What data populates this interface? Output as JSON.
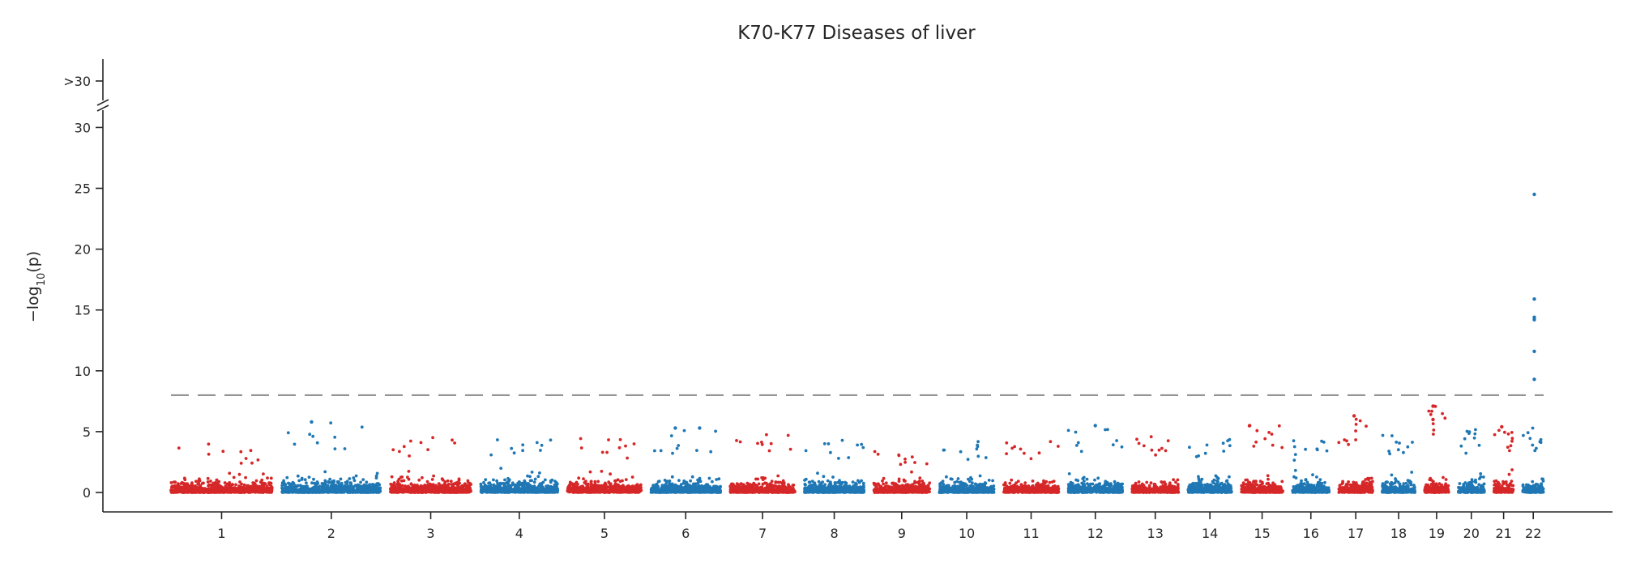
{
  "chart_data": {
    "type": "scatter",
    "title": "K70-K77 Diseases of liver",
    "ylabel_parts": [
      "−log",
      "10",
      "(p)"
    ],
    "xlabel": "",
    "ylim": [
      0,
      31
    ],
    "yticks": [
      0,
      5,
      10,
      15,
      20,
      25,
      30
    ],
    "ybreak_label": ">30",
    "threshold": 8.0,
    "colors": {
      "odd": "#d62728",
      "even": "#1f77b4",
      "threshold": "#888888"
    },
    "chromosomes": [
      {
        "label": "1",
        "size": 249,
        "max": 4.0
      },
      {
        "label": "2",
        "size": 243,
        "max": 5.8
      },
      {
        "label": "3",
        "size": 198,
        "max": 4.6
      },
      {
        "label": "4",
        "size": 190,
        "max": 5.1
      },
      {
        "label": "5",
        "size": 181,
        "max": 4.6
      },
      {
        "label": "6",
        "size": 171,
        "max": 5.3
      },
      {
        "label": "7",
        "size": 159,
        "max": 4.9
      },
      {
        "label": "8",
        "size": 146,
        "max": 4.4
      },
      {
        "label": "9",
        "size": 138,
        "max": 3.5
      },
      {
        "label": "10",
        "size": 134,
        "max": 4.3
      },
      {
        "label": "11",
        "size": 135,
        "max": 4.3
      },
      {
        "label": "12",
        "size": 133,
        "max": 5.5
      },
      {
        "label": "13",
        "size": 114,
        "max": 4.6
      },
      {
        "label": "14",
        "size": 107,
        "max": 4.5
      },
      {
        "label": "15",
        "size": 102,
        "max": 5.5
      },
      {
        "label": "16",
        "size": 90,
        "max": 4.3
      },
      {
        "label": "17",
        "size": 83,
        "max": 6.3
      },
      {
        "label": "18",
        "size": 80,
        "max": 4.7
      },
      {
        "label": "19",
        "size": 59,
        "max": 7.1
      },
      {
        "label": "20",
        "size": 64,
        "max": 5.2
      },
      {
        "label": "21",
        "size": 47,
        "max": 5.4
      },
      {
        "label": "22",
        "size": 51,
        "max": 5.3
      }
    ],
    "top_hits": [
      {
        "chr": "22",
        "pos": 0.55,
        "y": 24.5
      },
      {
        "chr": "22",
        "pos": 0.55,
        "y": 15.9
      },
      {
        "chr": "22",
        "pos": 0.55,
        "y": 14.4
      },
      {
        "chr": "22",
        "pos": 0.55,
        "y": 14.2
      },
      {
        "chr": "22",
        "pos": 0.55,
        "y": 11.6
      },
      {
        "chr": "22",
        "pos": 0.55,
        "y": 9.3
      },
      {
        "chr": "19",
        "pos": 0.35,
        "y": 7.1
      },
      {
        "chr": "19",
        "pos": 0.35,
        "y": 6.0
      },
      {
        "chr": "17",
        "pos": 0.45,
        "y": 6.3
      },
      {
        "chr": "2",
        "pos": 0.3,
        "y": 5.8
      },
      {
        "chr": "12",
        "pos": 0.5,
        "y": 5.5
      },
      {
        "chr": "15",
        "pos": 0.2,
        "y": 5.5
      },
      {
        "chr": "21",
        "pos": 0.4,
        "y": 5.4
      },
      {
        "chr": "6",
        "pos": 0.35,
        "y": 5.3
      },
      {
        "chr": "6",
        "pos": 0.7,
        "y": 5.3
      }
    ]
  }
}
